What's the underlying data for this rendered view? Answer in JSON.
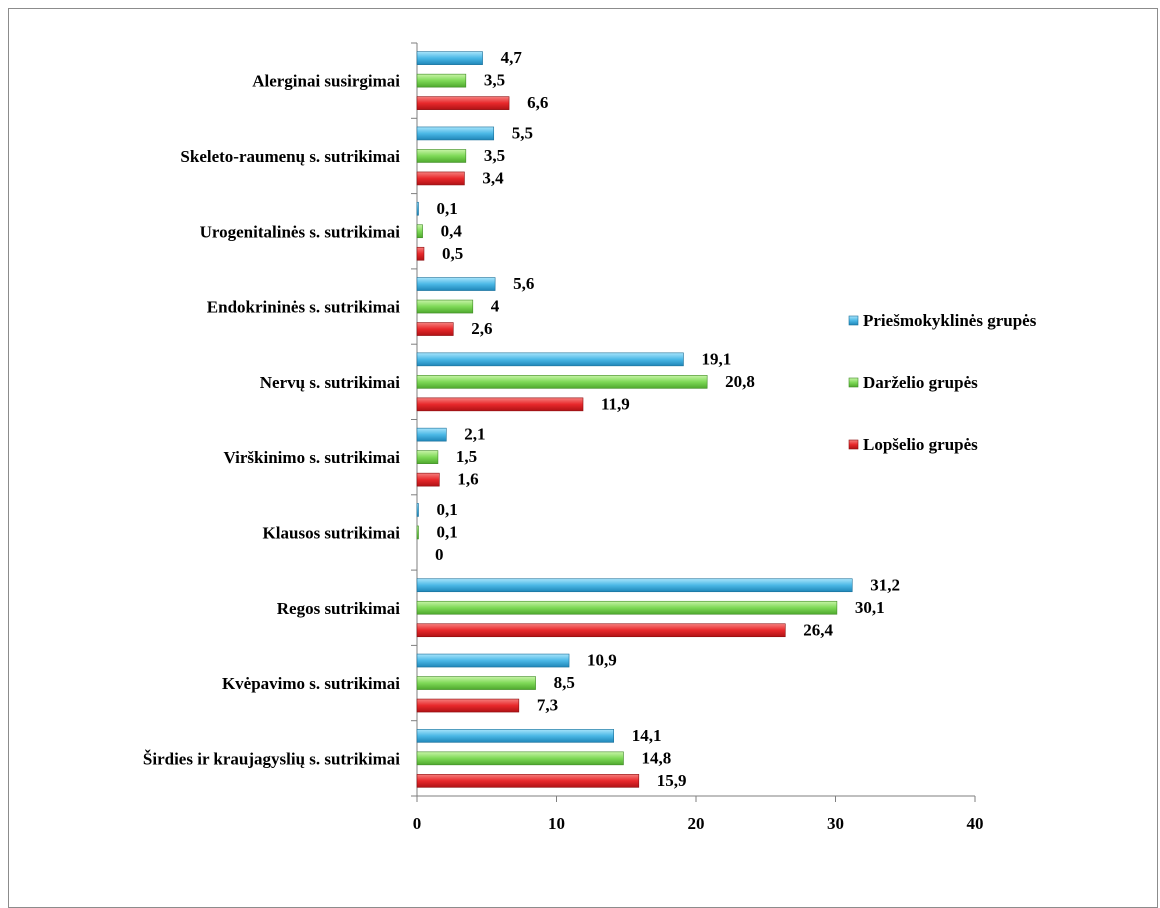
{
  "chart_data": {
    "type": "bar",
    "orientation": "horizontal",
    "categories": [
      "Alerginai susirgimai",
      "Skeleto-raumenų s. sutrikimai",
      "Urogenitalinės s. sutrikimai",
      "Endokrininės s. sutrikimai",
      "Nervų s. sutrikimai",
      "Virškinimo s. sutrikimai",
      "Klausos sutrikimai",
      "Regos sutrikimai",
      "Kvėpavimo s. sutrikimai",
      "Širdies ir kraujagyslių s. sutrikimai"
    ],
    "series": [
      {
        "name": "Priešmokyklinės grupės",
        "color": "#4bb8e6",
        "values": [
          4.7,
          5.5,
          0.1,
          5.6,
          19.1,
          2.1,
          0.1,
          31.2,
          10.9,
          14.1
        ],
        "labels": [
          "4,7",
          "5,5",
          "0,1",
          "5,6",
          "19,1",
          "2,1",
          "0,1",
          "31,2",
          "10,9",
          "14,1"
        ]
      },
      {
        "name": "Darželio grupės",
        "color": "#7ed957",
        "values": [
          3.5,
          3.5,
          0.4,
          4,
          20.8,
          1.5,
          0.1,
          30.1,
          8.5,
          14.8
        ],
        "labels": [
          "3,5",
          "3,5",
          "0,4",
          "4",
          "20,8",
          "1,5",
          "0,1",
          "30,1",
          "8,5",
          "14,8"
        ]
      },
      {
        "name": "Lopšelio grupės",
        "color": "#e8282b",
        "values": [
          6.6,
          3.4,
          0.5,
          2.6,
          11.9,
          1.6,
          0,
          26.4,
          7.3,
          15.9
        ],
        "labels": [
          "6,6",
          "3,4",
          "0,5",
          "2,6",
          "11,9",
          "1,6",
          "0",
          "26,4",
          "7,3",
          "15,9"
        ]
      }
    ],
    "xlim": [
      0,
      40
    ],
    "xticks": [
      0,
      10,
      20,
      30,
      40
    ],
    "title": "",
    "xlabel": "",
    "ylabel": "",
    "grid": false,
    "legend_position": "right"
  }
}
